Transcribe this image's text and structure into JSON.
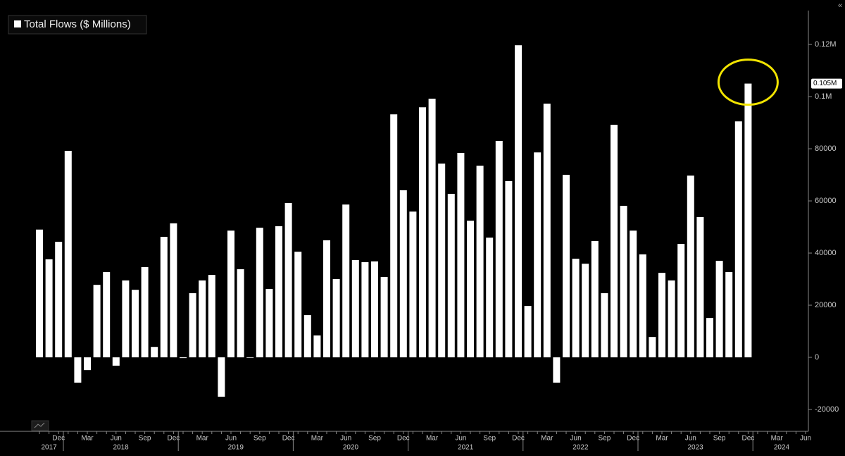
{
  "chart_data": {
    "type": "bar",
    "legend": "Total Flows ($ Millions)",
    "color": "#ffffff",
    "categories": [
      null,
      null,
      "Dec",
      null,
      null,
      "Mar",
      null,
      null,
      "Jun",
      null,
      null,
      "Sep",
      null,
      null,
      "Dec",
      null,
      null,
      "Mar",
      null,
      null,
      "Jun",
      null,
      null,
      "Sep",
      null,
      null,
      "Dec",
      null,
      null,
      "Mar",
      null,
      null,
      "Jun",
      null,
      null,
      "Sep",
      null,
      null,
      "Dec",
      null,
      null,
      "Mar",
      null,
      null,
      "Jun",
      null,
      null,
      "Sep",
      null,
      null,
      "Dec",
      null,
      null,
      "Mar",
      null,
      null,
      "Jun",
      null,
      null,
      "Sep",
      null,
      null,
      "Dec",
      null,
      null,
      "Mar",
      null,
      null,
      "Jun",
      null,
      null,
      "Sep",
      null,
      null,
      "Dec",
      null,
      null,
      "Mar",
      null,
      null,
      "Jun"
    ],
    "years": [
      "2017",
      "2018",
      "2019",
      "2020",
      "2021",
      "2022",
      "2023",
      "2024"
    ],
    "values": [
      49000,
      37600,
      44300,
      79200,
      -9700,
      -4900,
      27800,
      32700,
      -3200,
      29500,
      25900,
      34600,
      4000,
      46200,
      51400,
      -300,
      24600,
      29500,
      31600,
      -15100,
      48600,
      33800,
      -200,
      49700,
      26200,
      50300,
      59200,
      40500,
      16200,
      8400,
      44900,
      30000,
      58600,
      37300,
      36500,
      36800,
      30800,
      93200,
      64100,
      55900,
      95900,
      99200,
      74300,
      62700,
      78400,
      52400,
      73500,
      45900,
      83000,
      67600,
      119700,
      19700,
      78600,
      97300,
      -9700,
      70000,
      37800,
      35900,
      44600,
      24600,
      89200,
      58100,
      48600,
      39500,
      7800,
      32400,
      29500,
      43500,
      69700,
      53800,
      15100,
      37000,
      32700,
      90500,
      105000,
      null,
      null,
      null,
      null,
      null,
      null
    ],
    "last_value_label": {
      "value": 105000,
      "label": "0.105M"
    },
    "ylim": [
      -25000,
      133000
    ],
    "yticks": [
      -20000,
      0,
      20000,
      40000,
      60000,
      80000,
      {
        "value": 100000,
        "label": "0.1M"
      },
      {
        "value": 120000,
        "label": "0.12M"
      }
    ]
  }
}
